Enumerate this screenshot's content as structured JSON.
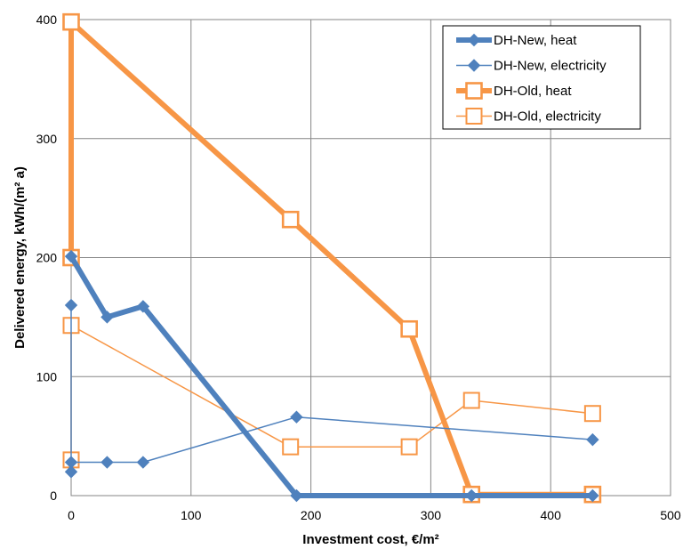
{
  "chart_data": {
    "type": "line",
    "xlabel": "Investment cost, €/m²",
    "ylabel": "Delivered energy, kWh/(m² a)",
    "xlim": [
      0,
      500
    ],
    "ylim": [
      0,
      400
    ],
    "x_ticks": [
      "0",
      "100",
      "200",
      "300",
      "400",
      "500"
    ],
    "y_ticks": [
      "0",
      "100",
      "200",
      "300",
      "400"
    ],
    "grid": true,
    "legend_position": "top-right",
    "series": [
      {
        "name": "DH-New, heat",
        "color": "#4f81bd",
        "marker": "diamond-filled",
        "line": "thick",
        "points": [
          [
            0,
            201
          ],
          [
            30,
            150
          ],
          [
            60,
            159
          ],
          [
            188,
            0
          ],
          [
            334,
            0
          ],
          [
            435,
            0
          ]
        ]
      },
      {
        "name": "DH-New, electricity",
        "color": "#4f81bd",
        "marker": "diamond-filled",
        "line": "thin",
        "points": [
          [
            0,
            160
          ],
          [
            0,
            20
          ],
          [
            0,
            28
          ],
          [
            30,
            28
          ],
          [
            60,
            28
          ],
          [
            188,
            66
          ],
          [
            435,
            47
          ]
        ]
      },
      {
        "name": "DH-Old, heat",
        "color": "#f79646",
        "marker": "square-open",
        "line": "thick",
        "points": [
          [
            0,
            200
          ],
          [
            0,
            398
          ],
          [
            183,
            232
          ],
          [
            282,
            140
          ],
          [
            334,
            1
          ],
          [
            435,
            1
          ]
        ]
      },
      {
        "name": "DH-Old, electricity",
        "color": "#f79646",
        "marker": "square-open",
        "line": "thin",
        "points": [
          [
            0,
            30
          ],
          [
            0,
            143
          ],
          [
            183,
            41
          ],
          [
            282,
            41
          ],
          [
            334,
            80
          ],
          [
            435,
            69
          ]
        ]
      }
    ]
  }
}
